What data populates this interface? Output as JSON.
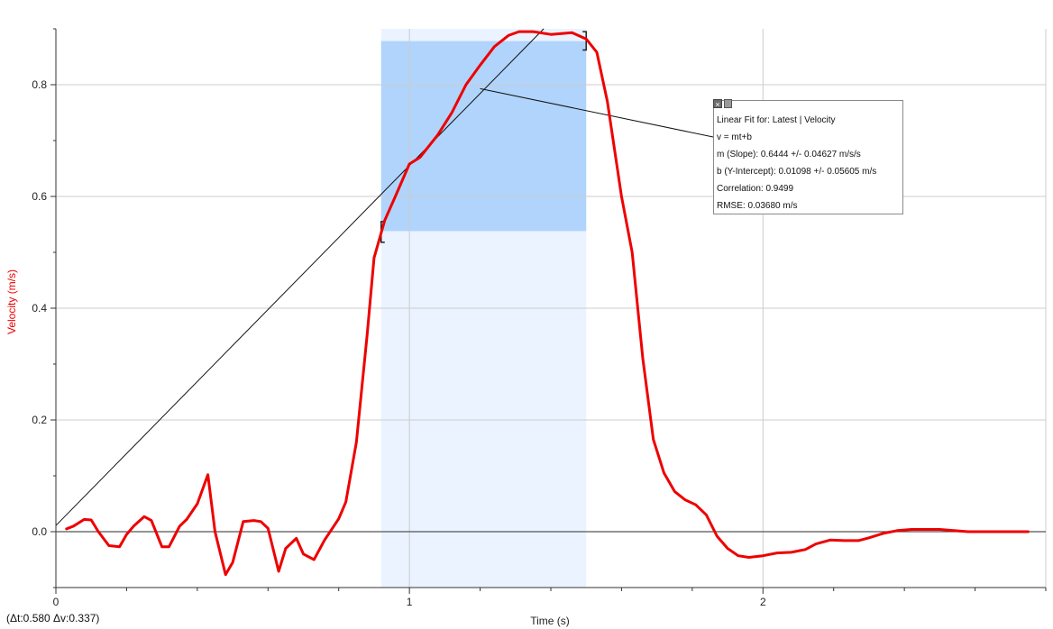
{
  "chart_data": {
    "type": "line",
    "xlabel": "Time (s)",
    "ylabel": "Velocity (m/s)",
    "xlim": [
      0,
      2.8
    ],
    "ylim": [
      -0.1,
      0.9
    ],
    "x_ticks": [
      "0",
      "1",
      "2"
    ],
    "y_ticks": [
      "0.0",
      "0.2",
      "0.4",
      "0.6",
      "0.8"
    ],
    "grid": true,
    "series": [
      {
        "color": "#ee0000",
        "points": [
          [
            0.03,
            0.005
          ],
          [
            0.05,
            0.01
          ],
          [
            0.08,
            0.022
          ],
          [
            0.1,
            0.021
          ],
          [
            0.12,
            0.0
          ],
          [
            0.15,
            -0.025
          ],
          [
            0.18,
            -0.027
          ],
          [
            0.2,
            -0.005
          ],
          [
            0.22,
            0.01
          ],
          [
            0.25,
            0.027
          ],
          [
            0.27,
            0.02
          ],
          [
            0.3,
            -0.027
          ],
          [
            0.32,
            -0.027
          ],
          [
            0.35,
            0.01
          ],
          [
            0.37,
            0.022
          ],
          [
            0.4,
            0.05
          ],
          [
            0.43,
            0.102
          ],
          [
            0.45,
            0.0
          ],
          [
            0.48,
            -0.077
          ],
          [
            0.5,
            -0.055
          ],
          [
            0.53,
            0.018
          ],
          [
            0.56,
            0.02
          ],
          [
            0.58,
            0.018
          ],
          [
            0.6,
            0.006
          ],
          [
            0.63,
            -0.071
          ],
          [
            0.65,
            -0.03
          ],
          [
            0.68,
            -0.012
          ],
          [
            0.7,
            -0.04
          ],
          [
            0.73,
            -0.05
          ],
          [
            0.76,
            -0.015
          ],
          [
            0.8,
            0.023
          ],
          [
            0.82,
            0.053
          ],
          [
            0.85,
            0.16
          ],
          [
            0.88,
            0.35
          ],
          [
            0.9,
            0.49
          ],
          [
            0.93,
            0.557
          ],
          [
            0.96,
            0.6
          ],
          [
            1.0,
            0.658
          ],
          [
            1.03,
            0.67
          ],
          [
            1.08,
            0.71
          ],
          [
            1.12,
            0.75
          ],
          [
            1.16,
            0.8
          ],
          [
            1.2,
            0.835
          ],
          [
            1.24,
            0.868
          ],
          [
            1.28,
            0.888
          ],
          [
            1.31,
            0.895
          ],
          [
            1.35,
            0.895
          ],
          [
            1.4,
            0.89
          ],
          [
            1.46,
            0.893
          ],
          [
            1.5,
            0.882
          ],
          [
            1.53,
            0.858
          ],
          [
            1.56,
            0.77
          ],
          [
            1.6,
            0.6
          ],
          [
            1.63,
            0.5
          ],
          [
            1.66,
            0.31
          ],
          [
            1.69,
            0.165
          ],
          [
            1.72,
            0.105
          ],
          [
            1.75,
            0.072
          ],
          [
            1.78,
            0.057
          ],
          [
            1.81,
            0.048
          ],
          [
            1.84,
            0.03
          ],
          [
            1.87,
            -0.008
          ],
          [
            1.9,
            -0.03
          ],
          [
            1.93,
            -0.043
          ],
          [
            1.96,
            -0.046
          ],
          [
            2.0,
            -0.043
          ],
          [
            2.04,
            -0.038
          ],
          [
            2.08,
            -0.037
          ],
          [
            2.12,
            -0.032
          ],
          [
            2.15,
            -0.022
          ],
          [
            2.19,
            -0.015
          ],
          [
            2.23,
            -0.016
          ],
          [
            2.27,
            -0.016
          ],
          [
            2.3,
            -0.011
          ],
          [
            2.34,
            -0.003
          ],
          [
            2.38,
            0.002
          ],
          [
            2.42,
            0.004
          ],
          [
            2.46,
            0.004
          ],
          [
            2.5,
            0.004
          ],
          [
            2.54,
            0.002
          ],
          [
            2.58,
            0.0
          ],
          [
            2.62,
            0.0
          ],
          [
            2.66,
            0.0
          ],
          [
            2.7,
            0.0
          ],
          [
            2.75,
            0.0
          ]
        ]
      }
    ],
    "selection": {
      "x_start": 0.92,
      "x_end": 1.5
    },
    "highlight_box": {
      "x_start": 0.92,
      "x_end": 1.5,
      "y_bottom": 0.538,
      "y_top": 0.878
    },
    "linear_fit": {
      "slope": 0.6444,
      "intercept": 0.01098,
      "x_start": 0.0,
      "x_end": 1.38
    },
    "fit_callout_anchor": [
      1.2,
      0.793
    ]
  },
  "fit_box": {
    "title": "Linear Fit for: Latest | Velocity",
    "equation": "v = mt+b",
    "slope": "m (Slope): 0.6444 +/- 0.04627 m/s/s",
    "intercept": "b (Y-Intercept): 0.01098 +/- 0.05605 m/s",
    "correlation": "Correlation: 0.9499",
    "rmse": "RMSE: 0.03680 m/s",
    "close_symbol": "×"
  },
  "delta_readout": "(Δt:0.580 Δv:0.337)",
  "colors": {
    "data_line": "#ee0000",
    "ylabel": "#ee0000",
    "selection": "#eaf3ff",
    "highlight": "#b0d4fb",
    "grid": "#cccccc"
  }
}
